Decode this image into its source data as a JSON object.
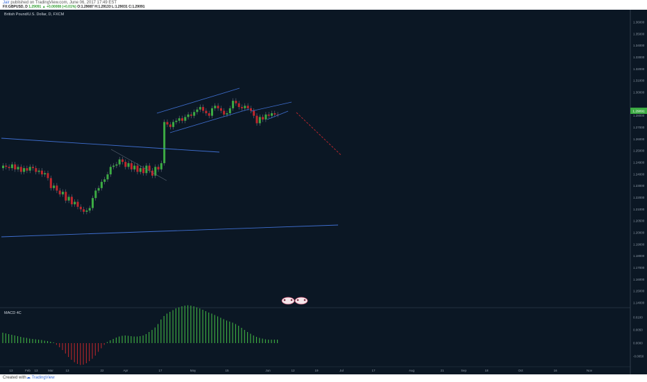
{
  "header": {
    "author": "Jair",
    "published_text": "published on TradingView.com, June 06, 2017 17:49 EST",
    "symbol": "FX:GBPUSD, D",
    "last": "1.29091",
    "change": "▲ +0.00008 (+0.01%)",
    "ohlc": "O:1.29087 H:1.29133 L:1.29031 C:1.29091"
  },
  "chart": {
    "title": "British Pound/U.S. Dollar, D, FXCM",
    "indicator_title": "MACD 4C",
    "current_price_label": "1.29091",
    "price_axis_labels": [
      "1.36000",
      "1.35000",
      "1.34000",
      "1.33000",
      "1.32000",
      "1.31000",
      "1.30000",
      "1.29091",
      "1.28000",
      "1.27000",
      "1.26000",
      "1.25000",
      "1.24900",
      "1.24000",
      "1.23000",
      "1.22000",
      "1.21000",
      "1.20500",
      "1.20000",
      "1.19000",
      "1.18000",
      "1.17000",
      "1.16000",
      "1.15000",
      "1.14000"
    ],
    "macd_axis_labels": [
      "0.0100",
      "0.0050",
      "0.0000",
      "-0.0050"
    ],
    "time_axis_labels": [
      "13",
      "Feb",
      "13",
      "Mar",
      "13",
      "22",
      "Apr",
      "17",
      "May",
      "15",
      "Jun",
      "12",
      "19",
      "Jul",
      "17",
      "Aug",
      "21",
      "Sep",
      "18",
      "Oct",
      "16",
      "Nov"
    ],
    "colors": {
      "up": "#3cab43",
      "down": "#c0272d",
      "trendline": "#3f6fd1",
      "background": "#0b1724"
    }
  },
  "chart_data": [
    {
      "type": "candlestick",
      "title": "British Pound/U.S. Dollar, D, FXCM",
      "close": [
        1.25,
        1.249,
        1.248,
        1.251,
        1.247,
        1.249,
        1.245,
        1.248,
        1.246,
        1.249,
        1.248,
        1.245,
        1.246,
        1.243,
        1.244,
        1.24,
        1.232,
        1.234,
        1.23,
        1.227,
        1.229,
        1.222,
        1.225,
        1.219,
        1.221,
        1.217,
        1.215,
        1.213,
        1.214,
        1.216,
        1.224,
        1.23,
        1.232,
        1.237,
        1.239,
        1.243,
        1.249,
        1.25,
        1.251,
        1.255,
        1.253,
        1.249,
        1.252,
        1.247,
        1.25,
        1.245,
        1.248,
        1.244,
        1.25,
        1.246,
        1.242,
        1.249,
        1.247,
        1.252,
        1.285,
        1.283,
        1.281,
        1.285,
        1.286,
        1.288,
        1.286,
        1.289,
        1.291,
        1.29,
        1.293,
        1.295,
        1.297,
        1.294,
        1.292,
        1.29,
        1.296,
        1.298,
        1.296,
        1.294,
        1.291,
        1.292,
        1.296,
        1.302,
        1.3,
        1.297,
        1.296,
        1.298,
        1.296,
        1.294,
        1.29,
        1.284,
        1.289,
        1.287,
        1.291,
        1.29,
        1.292,
        1.291,
        1.2909
      ],
      "ylim": [
        1.14,
        1.365
      ]
    },
    {
      "type": "bar",
      "title": "MACD 4C",
      "values": [
        0.003,
        0.0028,
        0.0026,
        0.0024,
        0.0022,
        0.002,
        0.0018,
        0.0016,
        0.0015,
        0.0013,
        0.0012,
        0.0011,
        0.001,
        0.0009,
        0.0007,
        0.0006,
        0.0004,
        0.0002,
        -0.0005,
        -0.0012,
        -0.002,
        -0.003,
        -0.004,
        -0.0048,
        -0.0055,
        -0.006,
        -0.0063,
        -0.0062,
        -0.0058,
        -0.0052,
        -0.0045,
        -0.0036,
        -0.0025,
        -0.0015,
        -0.0005,
        0.0003,
        0.0008,
        0.0012,
        0.0016,
        0.0019,
        0.0021,
        0.0022,
        0.0021,
        0.002,
        0.0019,
        0.0019,
        0.002,
        0.0022,
        0.0026,
        0.0032,
        0.0038,
        0.0045,
        0.0055,
        0.0068,
        0.0078,
        0.0085,
        0.009,
        0.0095,
        0.01,
        0.0103,
        0.0106,
        0.0108,
        0.0109,
        0.0108,
        0.0106,
        0.0103,
        0.01,
        0.0096,
        0.0092,
        0.0088,
        0.0085,
        0.0081,
        0.0077,
        0.0073,
        0.0069,
        0.0065,
        0.0062,
        0.0059,
        0.0055,
        0.005,
        0.0044,
        0.0038,
        0.0032,
        0.0027,
        0.0022,
        0.0018,
        0.0015,
        0.0013,
        0.0011,
        0.001,
        0.001,
        0.001,
        0.001
      ],
      "ylim": [
        -0.0075,
        0.0125
      ]
    }
  ],
  "footer": {
    "created_text": "Created with",
    "brand": "TradingView"
  }
}
